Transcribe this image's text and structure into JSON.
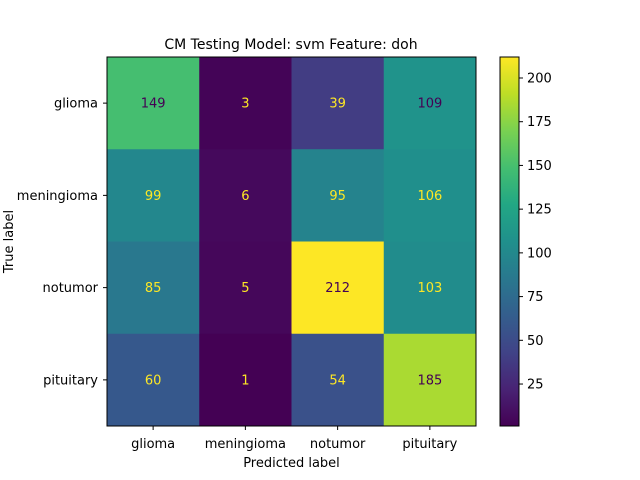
{
  "chart_data": {
    "type": "heatmap",
    "title": "CM Testing Model: svm Feature: doh",
    "xlabel": "Predicted label",
    "ylabel": "True label",
    "x_categories": [
      "glioma",
      "meningioma",
      "notumor",
      "pituitary"
    ],
    "y_categories": [
      "glioma",
      "meningioma",
      "notumor",
      "pituitary"
    ],
    "values": [
      [
        149,
        3,
        39,
        109
      ],
      [
        99,
        6,
        95,
        106
      ],
      [
        85,
        5,
        212,
        103
      ],
      [
        60,
        1,
        54,
        185
      ]
    ],
    "colormap": "viridis",
    "colorbar": {
      "min": 1,
      "max": 212,
      "ticks": [
        25,
        50,
        75,
        100,
        125,
        150,
        175,
        200
      ],
      "tick_labels": [
        "25",
        "50",
        "75",
        "100",
        "125",
        "150",
        "175",
        "200"
      ]
    },
    "annotation_colors": {
      "on_dark": "#fde725",
      "on_light": "#440154"
    }
  }
}
